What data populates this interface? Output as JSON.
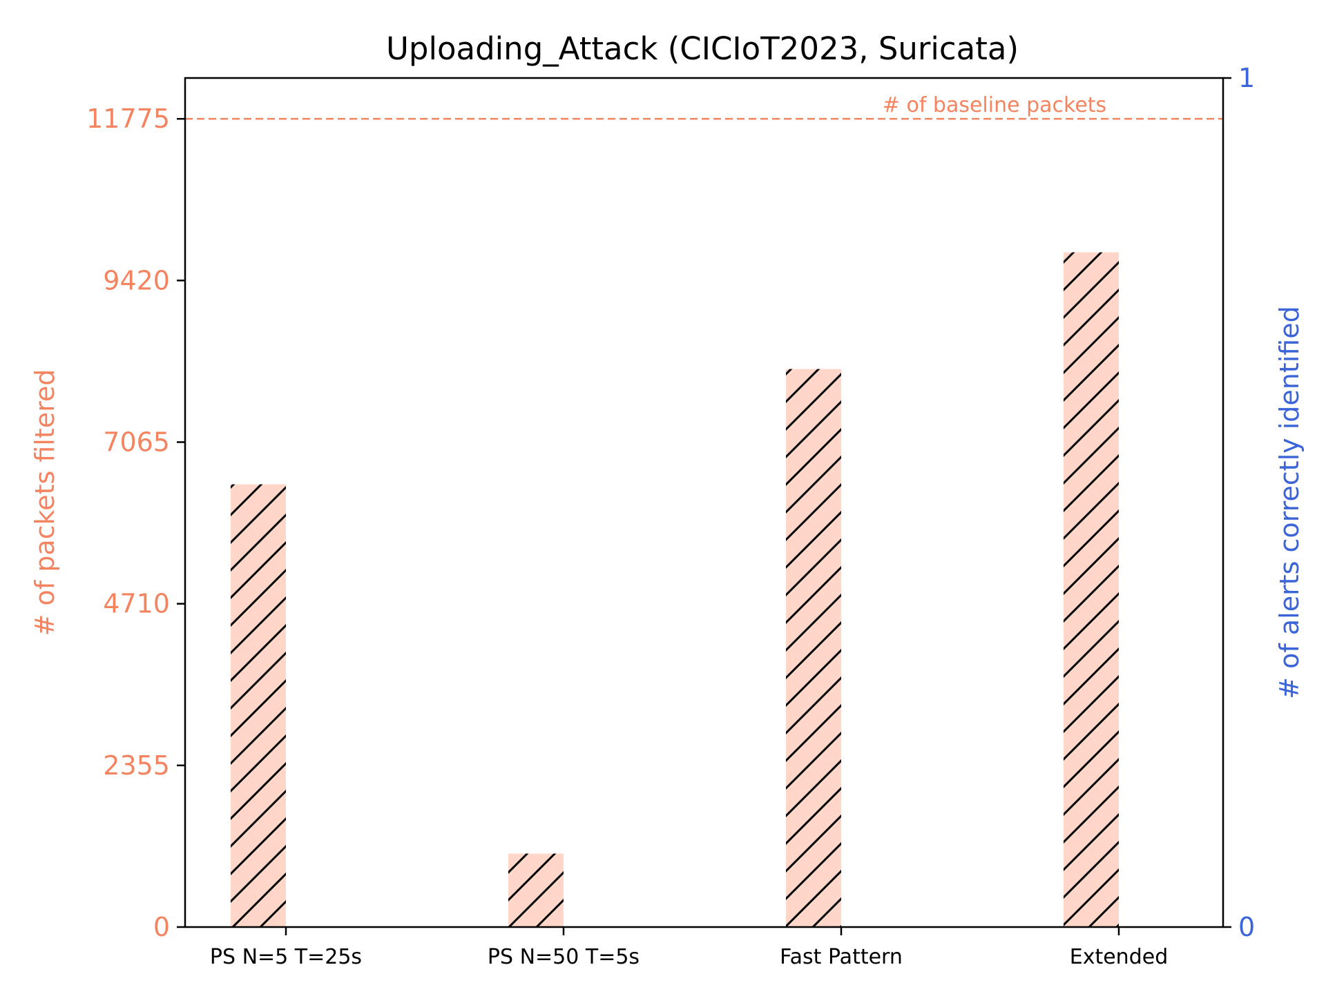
{
  "chart_data": {
    "type": "bar",
    "title": "Uploading_Attack (CICIoT2023, Suricata)",
    "categories": [
      "PS N=5 T=25s",
      "PS N=50 T=5s",
      "Fast Pattern",
      "Extended"
    ],
    "series": [
      {
        "values": [
          6450,
          1070,
          8130,
          9830
        ],
        "axis": "left",
        "color": "#ffd6c8",
        "hatch": "diagonal"
      }
    ],
    "left_axis": {
      "label": "# of packets filtered",
      "ticks": [
        "0",
        "2355",
        "4710",
        "7065",
        "9420",
        "11775"
      ],
      "tick_values": [
        0,
        2355,
        4710,
        7065,
        9420,
        11775
      ],
      "range": [
        0,
        12370
      ],
      "color": "#f4845f"
    },
    "right_axis": {
      "label": "# of alerts correctly identified",
      "ticks": [
        "0",
        "1"
      ],
      "tick_values": [
        0,
        1
      ],
      "range": [
        0,
        1
      ],
      "color": "#3a64d8"
    },
    "baseline": {
      "value": 11775,
      "label": "# of baseline packets",
      "color": "#f4845f",
      "style": "dashed"
    },
    "grid": false,
    "legend": "none"
  }
}
